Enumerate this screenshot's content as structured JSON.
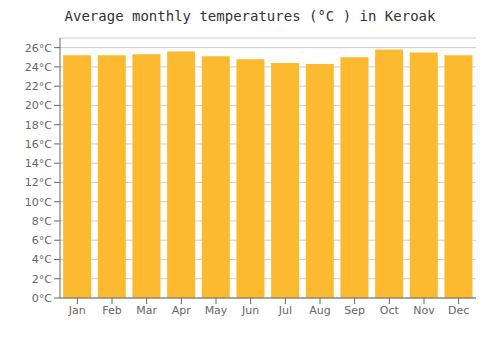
{
  "chart_data": {
    "type": "bar",
    "title": "Average monthly temperatures (°C ) in Keroak",
    "categories": [
      "Jan",
      "Feb",
      "Mar",
      "Apr",
      "May",
      "Jun",
      "Jul",
      "Aug",
      "Sep",
      "Oct",
      "Nov",
      "Dec"
    ],
    "values": [
      25.2,
      25.2,
      25.3,
      25.6,
      25.1,
      24.8,
      24.4,
      24.3,
      25.0,
      25.8,
      25.5,
      25.2
    ],
    "color": "#FBBA2F",
    "ylim": [
      0,
      27
    ],
    "yticks": [
      {
        "value": 0,
        "label": "0°C"
      },
      {
        "value": 2,
        "label": "2°C"
      },
      {
        "value": 4,
        "label": "4°C"
      },
      {
        "value": 6,
        "label": "6°C"
      },
      {
        "value": 8,
        "label": "8°C"
      },
      {
        "value": 10,
        "label": "10°C"
      },
      {
        "value": 12,
        "label": "12°C"
      },
      {
        "value": 14,
        "label": "14°C"
      },
      {
        "value": 16,
        "label": "16°C"
      },
      {
        "value": 18,
        "label": "18°C"
      },
      {
        "value": 20,
        "label": "20°C"
      },
      {
        "value": 22,
        "label": "22°C"
      },
      {
        "value": 24,
        "label": "24°C"
      },
      {
        "value": 26,
        "label": "26°C"
      }
    ],
    "grid": true
  }
}
